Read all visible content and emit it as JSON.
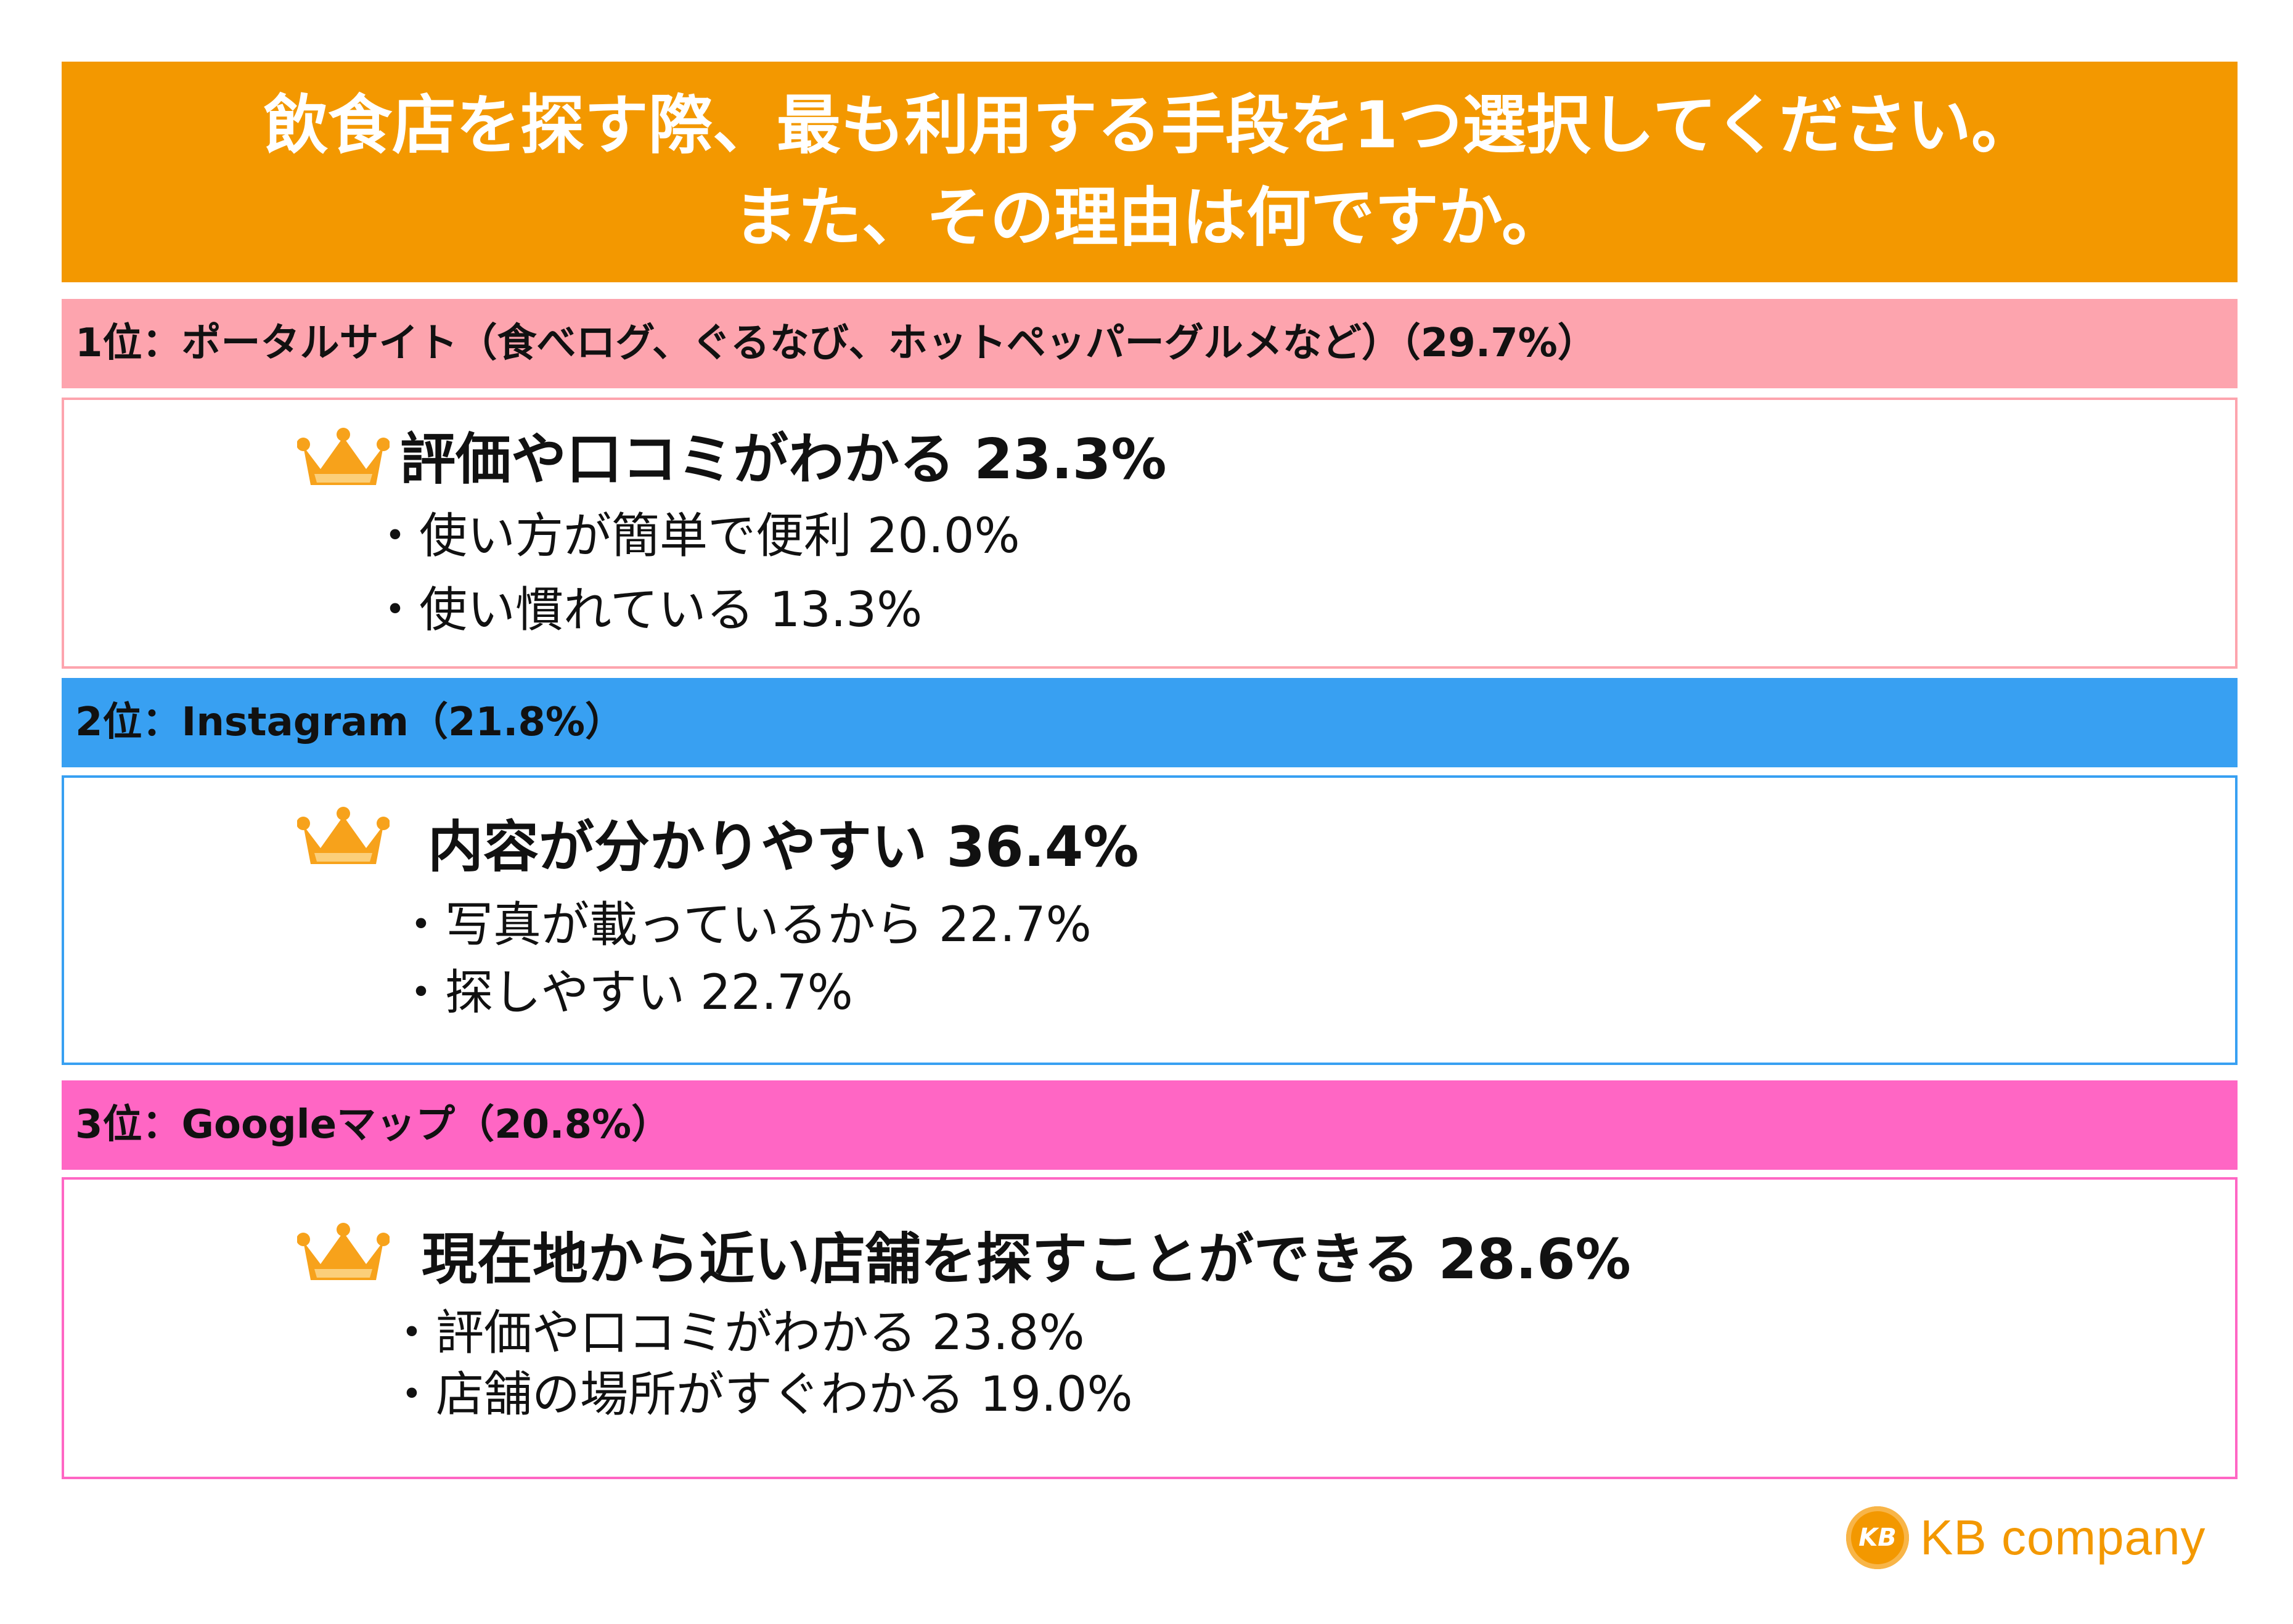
{
  "title": {
    "line1": "飲食店を探す際、最も利用する手段を1つ選択してください。",
    "line2": "また、その理由は何ですか。"
  },
  "colors": {
    "title_bg": "#f39800",
    "rank1": "#fda4ae",
    "rank2": "#38a0f2",
    "rank3": "#ff66c4",
    "crown": "#f7a21b"
  },
  "ranks": [
    {
      "label": "1位：ポータルサイト（食べログ、ぐるなび、ホットペッパーグルメなど）（29.7%）",
      "top_reason": "評価や口コミがわかる 23.3%",
      "reasons": [
        "・使い方が簡単で便利 20.0%",
        "・使い慣れている 13.3%"
      ]
    },
    {
      "label": "2位：Instagram（21.8%）",
      "top_reason": "内容が分かりやすい 36.4%",
      "reasons": [
        "・写真が載っているから 22.7%",
        "・探しやすい 22.7%"
      ]
    },
    {
      "label": "3位：Googleマップ（20.8%）",
      "top_reason": "現在地から近い店舗を探すことができる 28.6%",
      "reasons": [
        "・評価や口コミがわかる 23.8%",
        "・店舗の場所がすぐわかる 19.0%"
      ]
    }
  ],
  "logo": {
    "mark": "KB",
    "text": "KB company"
  }
}
